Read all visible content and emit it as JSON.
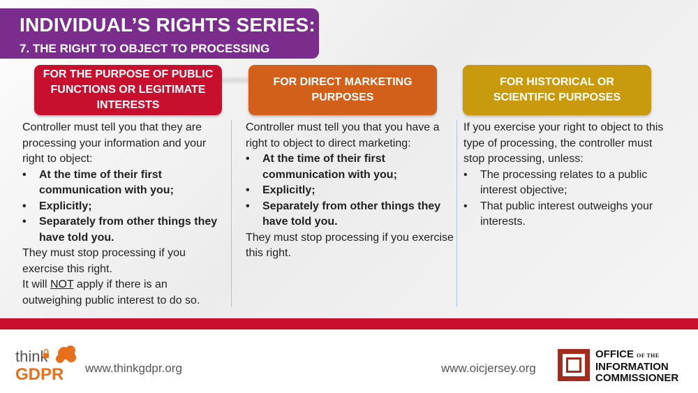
{
  "title": {
    "main": "INDIVIDUAL’S RIGHTS SERIES:",
    "sub": "7. THE RIGHT TO OBJECT TO PROCESSING"
  },
  "columns": [
    {
      "heading": "FOR THE  PURPOSE OF PUBLIC FUNCTIONS OR LEGITIMATE INTERESTS",
      "color": "#c8102e",
      "intro": "Controller must tell you that they are processing your information and your right to object:",
      "bullets": [
        "At the time of their first communication with you;",
        "Explicitly;",
        "Separately from other things they have told you."
      ],
      "outro": "They must stop processing if you exercise this right.",
      "note_prefix": "It will ",
      "note_emph": "NOT",
      "note_suffix": " apply if there is an outweighing public interest to do so."
    },
    {
      "heading": "FOR DIRECT MARKETING PURPOSES",
      "color": "#d2601a",
      "intro": "Controller must tell you that you have a right to object to direct marketing:",
      "bullets": [
        "At the time of their first communication with you;",
        "Explicitly;",
        "Separately from other things they have told you."
      ],
      "outro": "They must stop processing if you exercise this right."
    },
    {
      "heading": "FOR HISTORICAL OR SCIENTIFIC PURPOSES",
      "color": "#c99a0e",
      "intro": "If you exercise your right to object to this type of processing, the controller must stop processing, unless:",
      "bullets": [
        "The processing relates to a public interest objective;",
        "That public interest outweighs your interests."
      ]
    }
  ],
  "footer": {
    "logo_think": "think",
    "logo_gdpr": "GDPR",
    "url_left": "www.thinkgdpr.org",
    "url_right": "www.oicjersey.org",
    "oic_line1": "OFFICE",
    "oic_of_the": "OF THE",
    "oic_line2": "INFORMATION",
    "oic_line3": "COMMISSIONER"
  },
  "colors": {
    "title_banner": "#7b2d8e",
    "red_bar": "#c8102e",
    "oic_red": "#a52a1e",
    "gdpr_orange": "#e8701a"
  },
  "icons": [
    "lock-icon",
    "speech-bubble-icon",
    "oic-square-logo"
  ]
}
